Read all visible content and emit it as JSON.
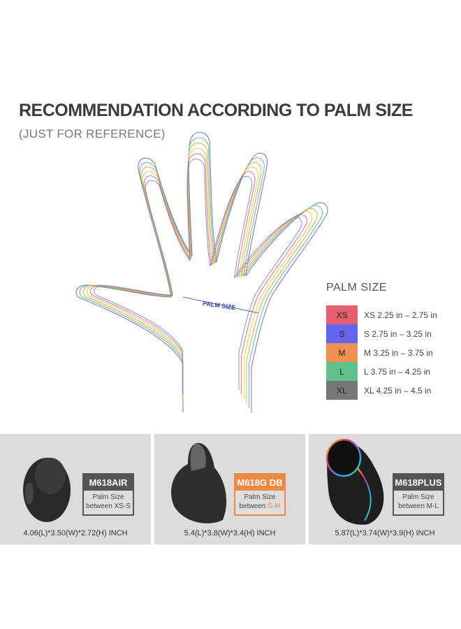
{
  "header": {
    "title": "RECOMMENDATION ACCORDING TO PALM SIZE",
    "subtitle": "(JUST FOR REFERENCE)"
  },
  "hand": {
    "palm_label": "PALM SIZE",
    "outline_colors": [
      "#7a6fb0",
      "#5fb7a4",
      "#e0a24f",
      "#d9c94e",
      "#e0607a",
      "#6d7fe0"
    ]
  },
  "legend": {
    "title": "PALM  SIZE",
    "items": [
      {
        "code": "XS",
        "range": "XS 2.25 in – 2.75 in",
        "color": "#e4606f"
      },
      {
        "code": "S",
        "range": "S  2.75 in – 3.25 in",
        "color": "#6464ef"
      },
      {
        "code": "M",
        "range": "M  3.25 in – 3.75 in",
        "color": "#ee9050"
      },
      {
        "code": "L",
        "range": "L  3.75 in – 4.25 in",
        "color": "#5fc28a"
      },
      {
        "code": "XL",
        "range": "XL 4.25 in – 4.5 in",
        "color": "#777777"
      }
    ]
  },
  "products": [
    {
      "name": "M618AIR",
      "palm_text": "Palm Size",
      "between": "between ",
      "range": "XS-S",
      "dimensions": "4.06(L)*3.50(W)*2.72(H) INCH",
      "accent": "#555555"
    },
    {
      "name": "M618G DB",
      "palm_text": "Palm Size",
      "between": "between ",
      "range": "S-M",
      "dimensions": "5.4(L)*3.8(W)*3.4(H) INCH",
      "accent": "#ef8a45"
    },
    {
      "name": "M618PLUS",
      "palm_text": "Palm Size",
      "between": "between ",
      "range": "M-L",
      "dimensions": "5.87(L)*3.74(W)*3.9(H) INCH",
      "accent": "#555555"
    }
  ]
}
